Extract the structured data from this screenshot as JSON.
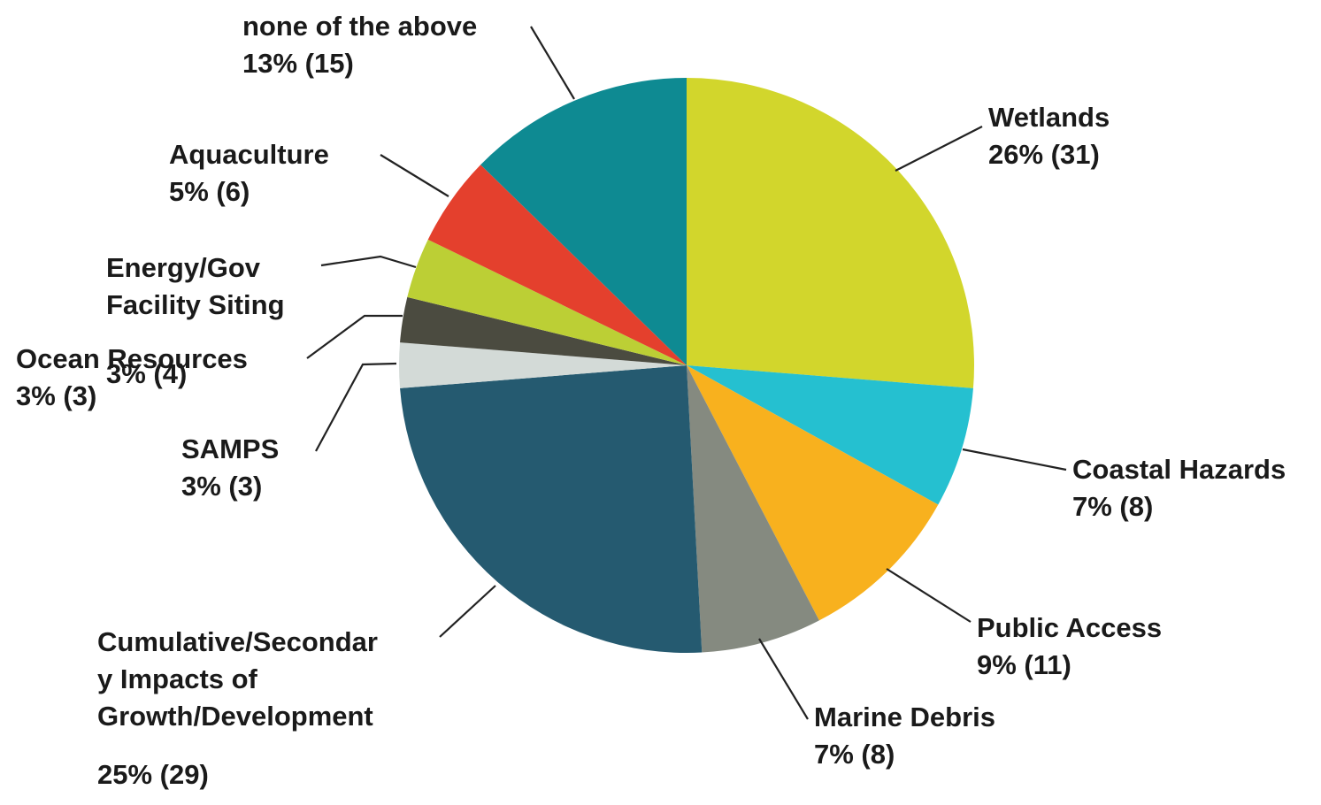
{
  "chart_data": {
    "type": "pie",
    "start": "12 o'clock, clockwise",
    "slices": [
      {
        "label": "Wetlands",
        "value_text": "26% (31)",
        "count": 31,
        "percent": 26,
        "color": "#d2d62c"
      },
      {
        "label": "Coastal Hazards",
        "value_text": "7% (8)",
        "count": 8,
        "percent": 7,
        "color": "#25c0d0"
      },
      {
        "label": "Public Access",
        "value_text": "9% (11)",
        "count": 11,
        "percent": 9,
        "color": "#f8b11e"
      },
      {
        "label": "Marine Debris",
        "value_text": "7% (8)",
        "count": 8,
        "percent": 7,
        "color": "#858a80"
      },
      {
        "label": "Cumulative/Secondar|y Impacts of|Growth/Development",
        "value_text": "25% (29)",
        "count": 29,
        "percent": 25,
        "color": "#255a70"
      },
      {
        "label": "SAMPS",
        "value_text": "3% (3)",
        "count": 3,
        "percent": 3,
        "color": "#d3dad7"
      },
      {
        "label": "Ocean Resources",
        "value_text": "3% (3)",
        "count": 3,
        "percent": 3,
        "color": "#4b4b40"
      },
      {
        "label": "Energy/Gov|Facility Siting",
        "value_text": "3% (4)",
        "count": 4,
        "percent": 3,
        "color": "#bccf35"
      },
      {
        "label": "Aquaculture",
        "value_text": "5% (6)",
        "count": 6,
        "percent": 5,
        "color": "#e4402d"
      },
      {
        "label": "none of the above",
        "value_text": "13% (15)",
        "count": 15,
        "percent": 13,
        "color": "#0e8a92"
      }
    ]
  }
}
